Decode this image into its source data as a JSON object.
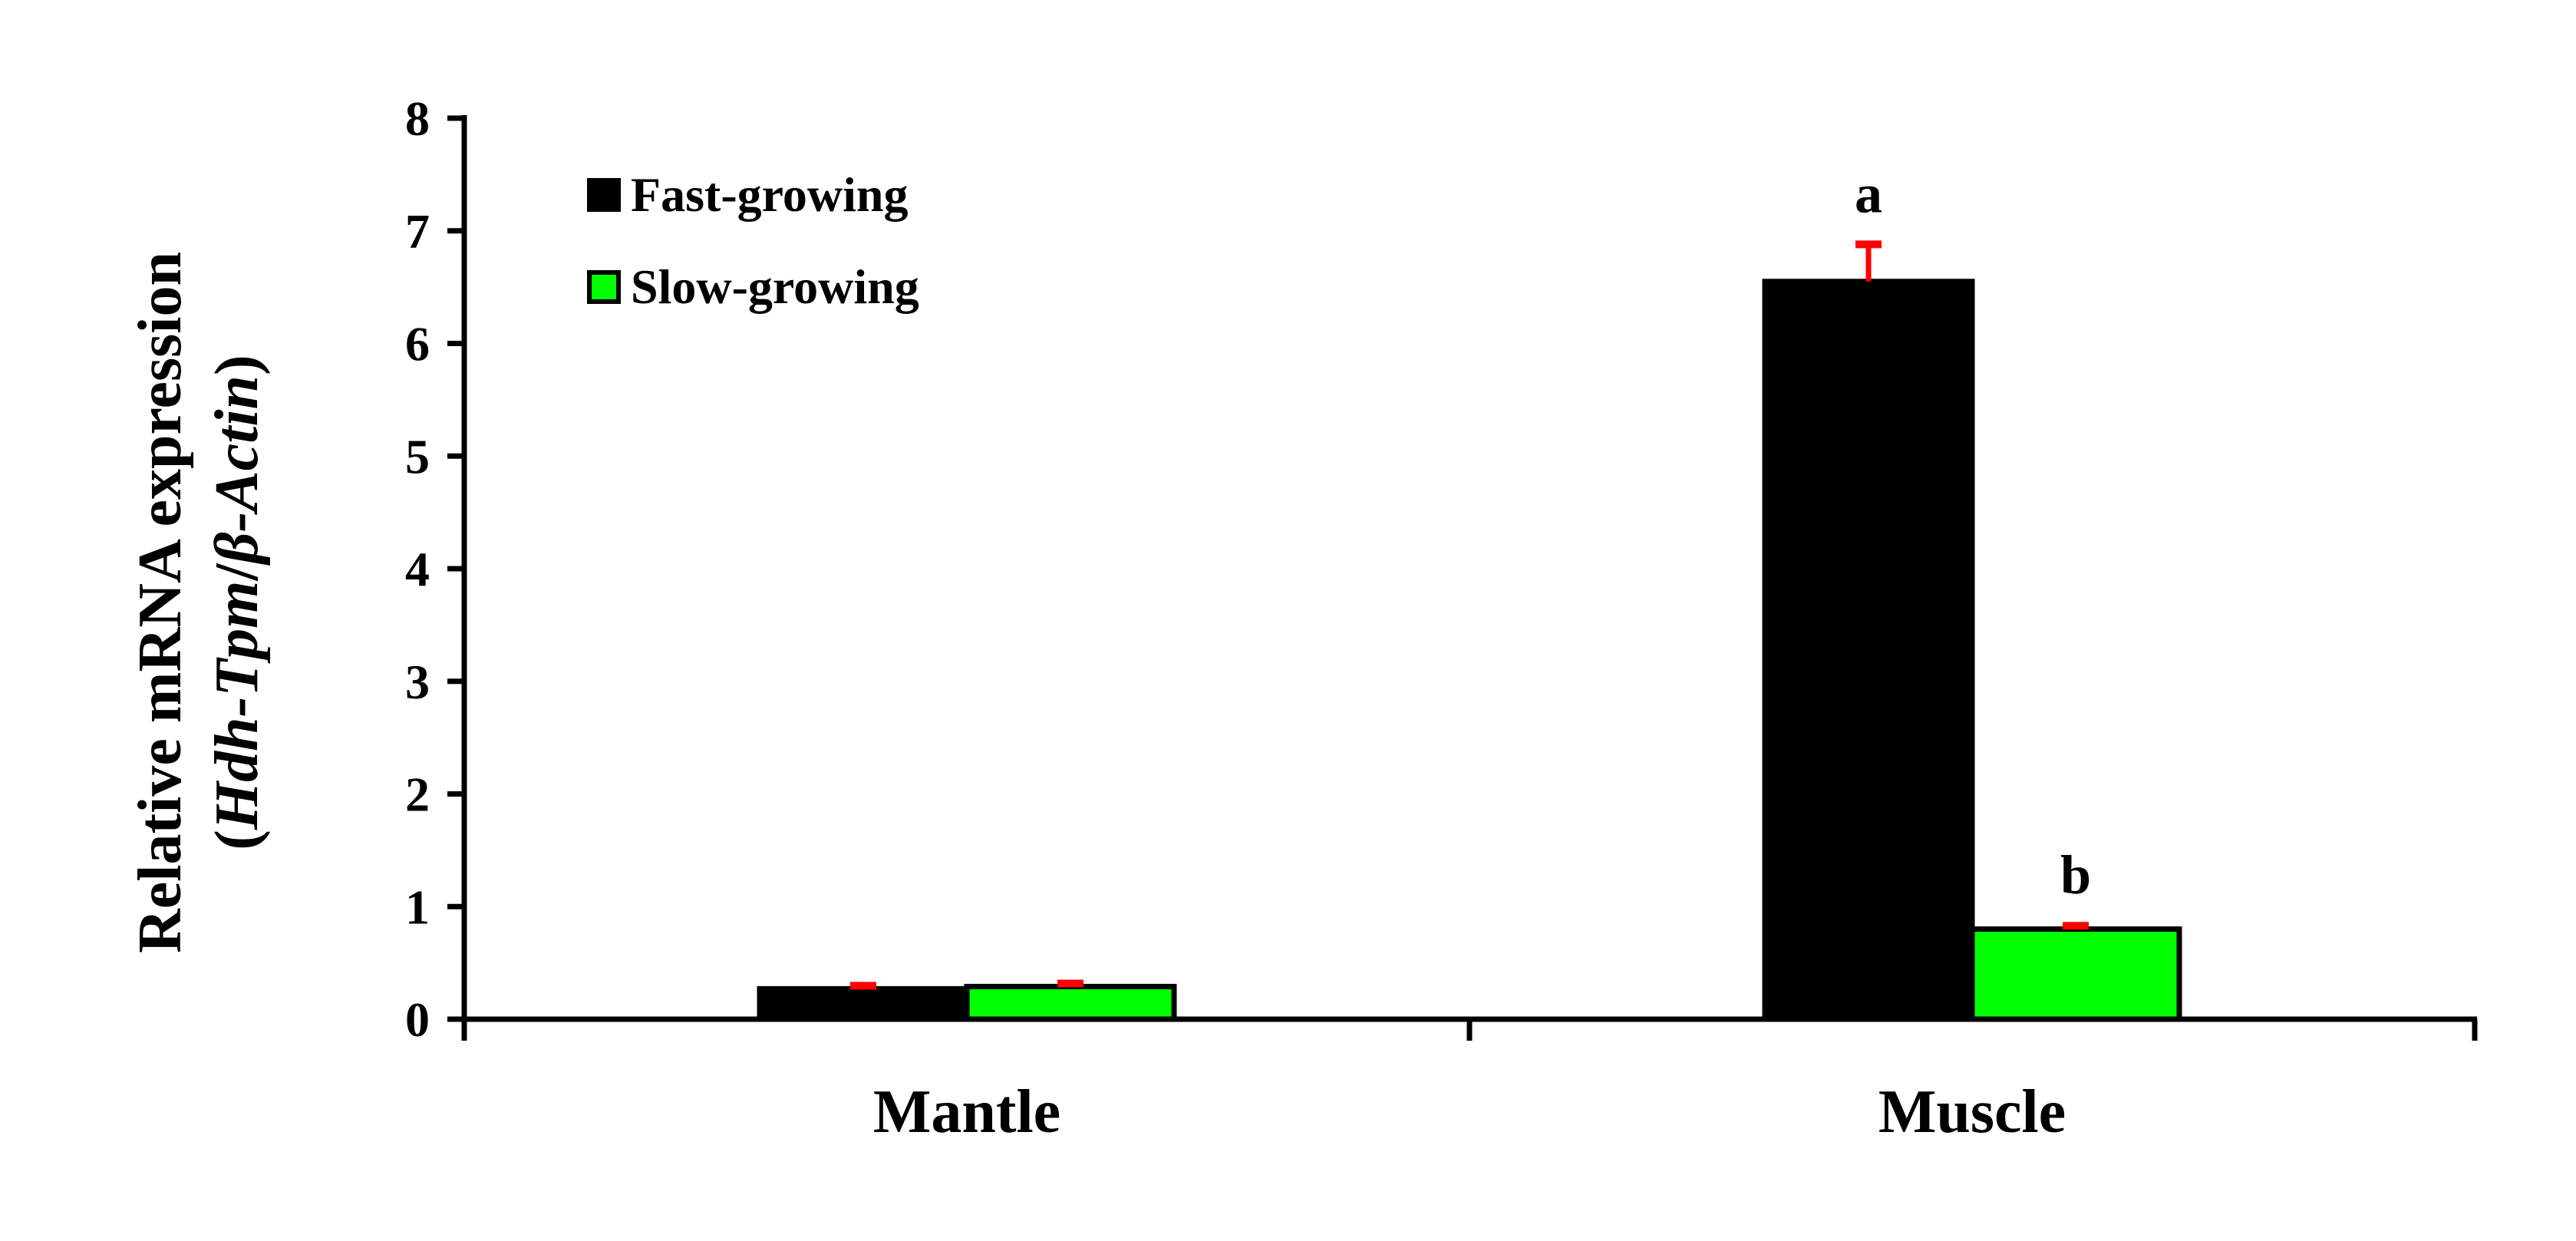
{
  "chart_data": {
    "type": "bar",
    "title": "",
    "xlabel": "",
    "ylabel": {
      "line1": "Relative mRNA expression",
      "line2_open": "(",
      "line2_italic_1": "Hdh-Tpm",
      "line2_slash": "/",
      "line2_italic_2": "β-Actin",
      "line2_close": ")"
    },
    "categories": [
      "Mantle",
      "Muscle"
    ],
    "series": [
      {
        "name": "Fast-growing",
        "color": "#000000",
        "values": [
          0.27,
          6.55
        ],
        "errors": [
          0.02,
          0.33
        ],
        "labels": [
          "",
          "a"
        ]
      },
      {
        "name": "Slow-growing",
        "color": "#00ff00",
        "values": [
          0.29,
          0.8
        ],
        "errors": [
          0.02,
          0.03
        ],
        "labels": [
          "",
          "b"
        ]
      }
    ],
    "ylim": [
      0,
      8
    ],
    "yticks": [
      "0",
      "1",
      "2",
      "3",
      "4",
      "5",
      "6",
      "7",
      "8"
    ],
    "grid": false,
    "legend_position": "top-left",
    "error_bar_color": "#ff0000"
  }
}
